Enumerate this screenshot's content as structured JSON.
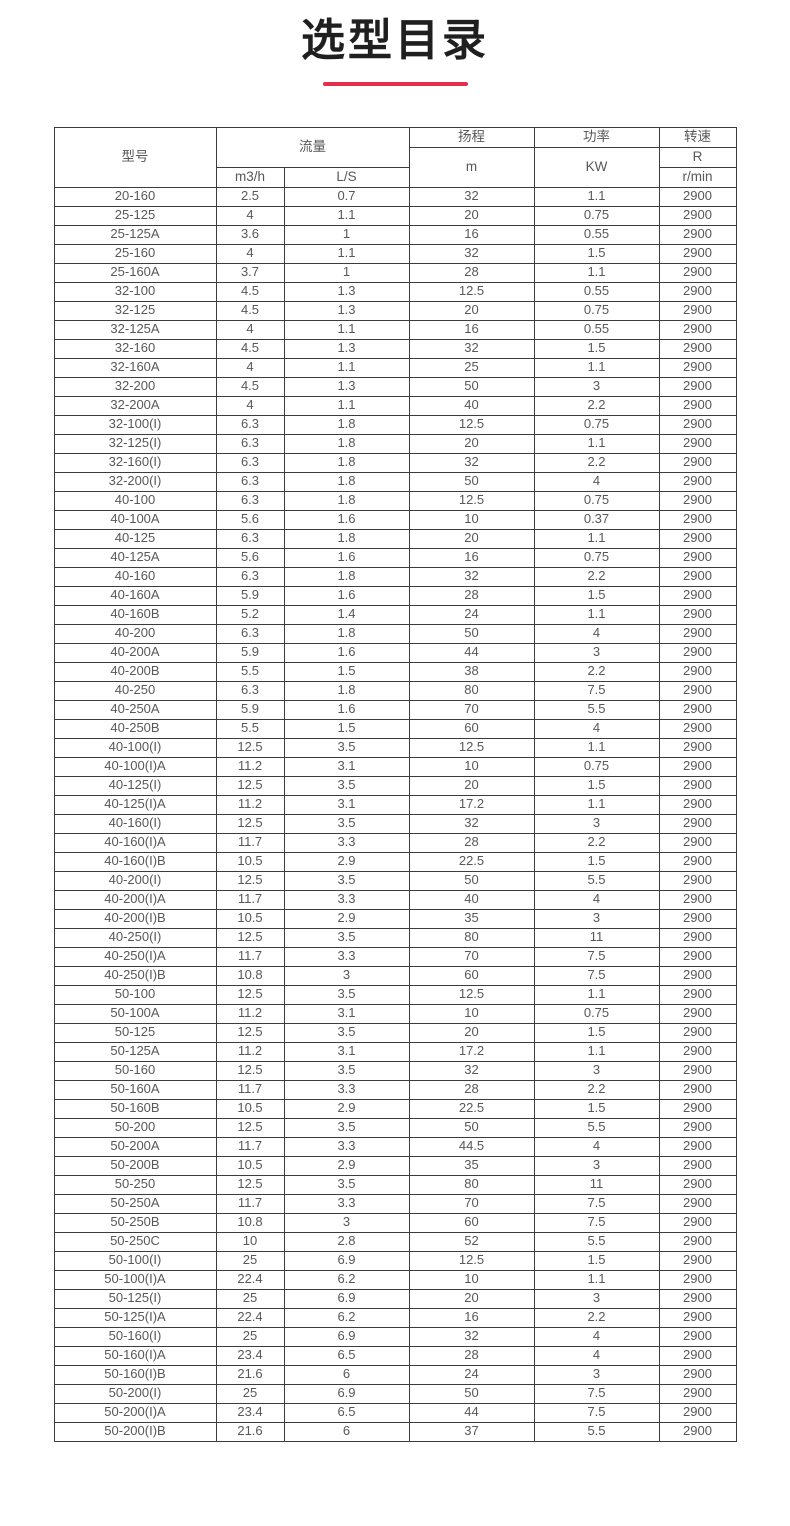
{
  "accent_color": "#e62d4d",
  "title": "选型目录",
  "table": {
    "header": {
      "model": "型号",
      "flow": "流量",
      "flow_unit_m3h": "m3/h",
      "flow_unit_ls": "L/S",
      "head": "扬程",
      "head_unit": "m",
      "power": "功率",
      "power_unit": "KW",
      "speed": "转速",
      "speed_unit_top": "R",
      "speed_unit_bottom": "r/min"
    },
    "columns": [
      "model",
      "flow_m3h",
      "flow_ls",
      "head_m",
      "power_kw",
      "speed_rpm"
    ],
    "rows": [
      [
        "20-160",
        "2.5",
        "0.7",
        "32",
        "1.1",
        "2900"
      ],
      [
        "25-125",
        "4",
        "1.1",
        "20",
        "0.75",
        "2900"
      ],
      [
        "25-125A",
        "3.6",
        "1",
        "16",
        "0.55",
        "2900"
      ],
      [
        "25-160",
        "4",
        "1.1",
        "32",
        "1.5",
        "2900"
      ],
      [
        "25-160A",
        "3.7",
        "1",
        "28",
        "1.1",
        "2900"
      ],
      [
        "32-100",
        "4.5",
        "1.3",
        "12.5",
        "0.55",
        "2900"
      ],
      [
        "32-125",
        "4.5",
        "1.3",
        "20",
        "0.75",
        "2900"
      ],
      [
        "32-125A",
        "4",
        "1.1",
        "16",
        "0.55",
        "2900"
      ],
      [
        "32-160",
        "4.5",
        "1.3",
        "32",
        "1.5",
        "2900"
      ],
      [
        "32-160A",
        "4",
        "1.1",
        "25",
        "1.1",
        "2900"
      ],
      [
        "32-200",
        "4.5",
        "1.3",
        "50",
        "3",
        "2900"
      ],
      [
        "32-200A",
        "4",
        "1.1",
        "40",
        "2.2",
        "2900"
      ],
      [
        "32-100(I)",
        "6.3",
        "1.8",
        "12.5",
        "0.75",
        "2900"
      ],
      [
        "32-125(I)",
        "6.3",
        "1.8",
        "20",
        "1.1",
        "2900"
      ],
      [
        "32-160(I)",
        "6.3",
        "1.8",
        "32",
        "2.2",
        "2900"
      ],
      [
        "32-200(I)",
        "6.3",
        "1.8",
        "50",
        "4",
        "2900"
      ],
      [
        "40-100",
        "6.3",
        "1.8",
        "12.5",
        "0.75",
        "2900"
      ],
      [
        "40-100A",
        "5.6",
        "1.6",
        "10",
        "0.37",
        "2900"
      ],
      [
        "40-125",
        "6.3",
        "1.8",
        "20",
        "1.1",
        "2900"
      ],
      [
        "40-125A",
        "5.6",
        "1.6",
        "16",
        "0.75",
        "2900"
      ],
      [
        "40-160",
        "6.3",
        "1.8",
        "32",
        "2.2",
        "2900"
      ],
      [
        "40-160A",
        "5.9",
        "1.6",
        "28",
        "1.5",
        "2900"
      ],
      [
        "40-160B",
        "5.2",
        "1.4",
        "24",
        "1.1",
        "2900"
      ],
      [
        "40-200",
        "6.3",
        "1.8",
        "50",
        "4",
        "2900"
      ],
      [
        "40-200A",
        "5.9",
        "1.6",
        "44",
        "3",
        "2900"
      ],
      [
        "40-200B",
        "5.5",
        "1.5",
        "38",
        "2.2",
        "2900"
      ],
      [
        "40-250",
        "6.3",
        "1.8",
        "80",
        "7.5",
        "2900"
      ],
      [
        "40-250A",
        "5.9",
        "1.6",
        "70",
        "5.5",
        "2900"
      ],
      [
        "40-250B",
        "5.5",
        "1.5",
        "60",
        "4",
        "2900"
      ],
      [
        "40-100(I)",
        "12.5",
        "3.5",
        "12.5",
        "1.1",
        "2900"
      ],
      [
        "40-100(I)A",
        "11.2",
        "3.1",
        "10",
        "0.75",
        "2900"
      ],
      [
        "40-125(I)",
        "12.5",
        "3.5",
        "20",
        "1.5",
        "2900"
      ],
      [
        "40-125(I)A",
        "11.2",
        "3.1",
        "17.2",
        "1.1",
        "2900"
      ],
      [
        "40-160(I)",
        "12.5",
        "3.5",
        "32",
        "3",
        "2900"
      ],
      [
        "40-160(I)A",
        "11.7",
        "3.3",
        "28",
        "2.2",
        "2900"
      ],
      [
        "40-160(I)B",
        "10.5",
        "2.9",
        "22.5",
        "1.5",
        "2900"
      ],
      [
        "40-200(I)",
        "12.5",
        "3.5",
        "50",
        "5.5",
        "2900"
      ],
      [
        "40-200(I)A",
        "11.7",
        "3.3",
        "40",
        "4",
        "2900"
      ],
      [
        "40-200(I)B",
        "10.5",
        "2.9",
        "35",
        "3",
        "2900"
      ],
      [
        "40-250(I)",
        "12.5",
        "3.5",
        "80",
        "11",
        "2900"
      ],
      [
        "40-250(I)A",
        "11.7",
        "3.3",
        "70",
        "7.5",
        "2900"
      ],
      [
        "40-250(I)B",
        "10.8",
        "3",
        "60",
        "7.5",
        "2900"
      ],
      [
        "50-100",
        "12.5",
        "3.5",
        "12.5",
        "1.1",
        "2900"
      ],
      [
        "50-100A",
        "11.2",
        "3.1",
        "10",
        "0.75",
        "2900"
      ],
      [
        "50-125",
        "12.5",
        "3.5",
        "20",
        "1.5",
        "2900"
      ],
      [
        "50-125A",
        "11.2",
        "3.1",
        "17.2",
        "1.1",
        "2900"
      ],
      [
        "50-160",
        "12.5",
        "3.5",
        "32",
        "3",
        "2900"
      ],
      [
        "50-160A",
        "11.7",
        "3.3",
        "28",
        "2.2",
        "2900"
      ],
      [
        "50-160B",
        "10.5",
        "2.9",
        "22.5",
        "1.5",
        "2900"
      ],
      [
        "50-200",
        "12.5",
        "3.5",
        "50",
        "5.5",
        "2900"
      ],
      [
        "50-200A",
        "11.7",
        "3.3",
        "44.5",
        "4",
        "2900"
      ],
      [
        "50-200B",
        "10.5",
        "2.9",
        "35",
        "3",
        "2900"
      ],
      [
        "50-250",
        "12.5",
        "3.5",
        "80",
        "11",
        "2900"
      ],
      [
        "50-250A",
        "11.7",
        "3.3",
        "70",
        "7.5",
        "2900"
      ],
      [
        "50-250B",
        "10.8",
        "3",
        "60",
        "7.5",
        "2900"
      ],
      [
        "50-250C",
        "10",
        "2.8",
        "52",
        "5.5",
        "2900"
      ],
      [
        "50-100(I)",
        "25",
        "6.9",
        "12.5",
        "1.5",
        "2900"
      ],
      [
        "50-100(I)A",
        "22.4",
        "6.2",
        "10",
        "1.1",
        "2900"
      ],
      [
        "50-125(I)",
        "25",
        "6.9",
        "20",
        "3",
        "2900"
      ],
      [
        "50-125(I)A",
        "22.4",
        "6.2",
        "16",
        "2.2",
        "2900"
      ],
      [
        "50-160(I)",
        "25",
        "6.9",
        "32",
        "4",
        "2900"
      ],
      [
        "50-160(I)A",
        "23.4",
        "6.5",
        "28",
        "4",
        "2900"
      ],
      [
        "50-160(I)B",
        "21.6",
        "6",
        "24",
        "3",
        "2900"
      ],
      [
        "50-200(I)",
        "25",
        "6.9",
        "50",
        "7.5",
        "2900"
      ],
      [
        "50-200(I)A",
        "23.4",
        "6.5",
        "44",
        "7.5",
        "2900"
      ],
      [
        "50-200(I)B",
        "21.6",
        "6",
        "37",
        "5.5",
        "2900"
      ]
    ]
  }
}
